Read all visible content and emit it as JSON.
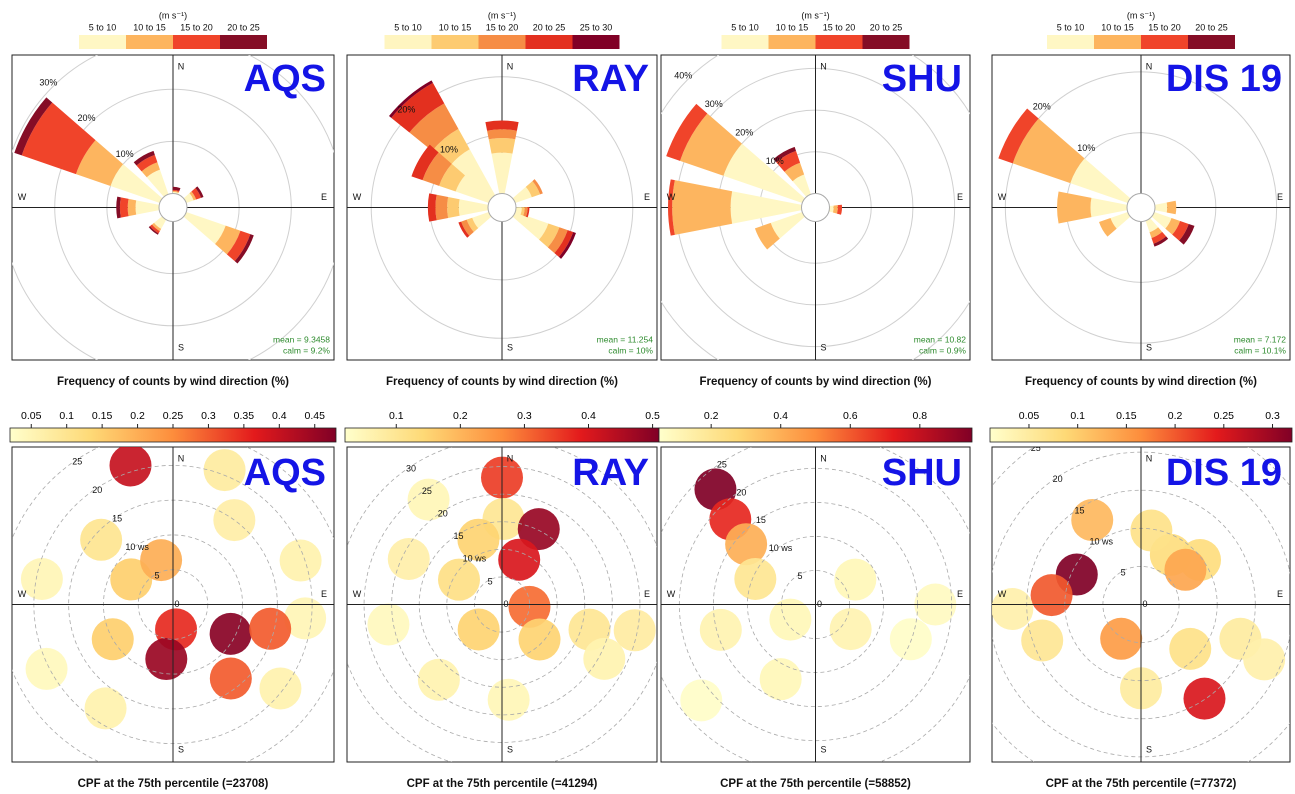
{
  "chart_data": [
    {
      "type": "windrose",
      "site": "AQS",
      "title": "Frequency of counts by wind direction (%)",
      "legend_title": "(m s⁻¹)",
      "compass": [
        "N",
        "E",
        "S",
        "W"
      ],
      "annotations": [
        "mean = 9.3458",
        "calm = 9.2%"
      ],
      "rlim": [
        0,
        28
      ],
      "rticks": [
        {
          "value": 10,
          "label": "10%"
        },
        {
          "value": 20,
          "label": "20%"
        },
        {
          "value": 30,
          "label": "30%"
        }
      ],
      "directions": [
        300,
        330,
        10,
        60,
        120,
        220,
        270
      ],
      "series": [
        {
          "name": "5 to 10",
          "color": "#fff7c4",
          "values": [
            10,
            5,
            0.3,
            1.5,
            8,
            2,
            4.5
          ]
        },
        {
          "name": "10 to 15",
          "color": "#fdb55f",
          "values": [
            7,
            1.5,
            0.2,
            0.5,
            3,
            0.5,
            1.5
          ]
        },
        {
          "name": "15 to 20",
          "color": "#f0442a",
          "values": [
            11,
            1.5,
            0.2,
            1,
            2,
            0.5,
            1.5
          ]
        },
        {
          "name": "20 to 25",
          "color": "#850d26",
          "values": [
            1.5,
            0.8,
            0.6,
            0.5,
            0.7,
            0.3,
            0.7
          ]
        }
      ]
    },
    {
      "type": "windrose",
      "site": "RAY",
      "title": "Frequency of counts by wind direction (%)",
      "legend_title": "(m s⁻¹)",
      "compass": [
        "N",
        "E",
        "S",
        "W"
      ],
      "annotations": [
        "mean = 11.254",
        "calm = 10%"
      ],
      "rlim": [
        0,
        25
      ],
      "rticks": [
        {
          "value": 10,
          "label": "10%"
        },
        {
          "value": 20,
          "label": "20%"
        }
      ],
      "directions": [
        320,
        300,
        0,
        270,
        240,
        60,
        120,
        100
      ],
      "series": [
        {
          "name": "5 to 10",
          "color": "#fff5c0",
          "values": [
            9,
            6,
            7,
            5,
            3,
            3,
            6,
            1
          ]
        },
        {
          "name": "10 to 15",
          "color": "#fdcb71",
          "values": [
            4,
            3,
            2.5,
            2,
            1,
            1.5,
            2,
            0.5
          ]
        },
        {
          "name": "15 to 20",
          "color": "#f68d45",
          "values": [
            5,
            3,
            1.5,
            2,
            1,
            0.5,
            1.5,
            0.5
          ]
        },
        {
          "name": "20 to 25",
          "color": "#e3301f",
          "values": [
            4,
            2,
            1.5,
            1.3,
            0.5,
            0,
            1,
            0.3
          ]
        },
        {
          "name": "25 to 30",
          "color": "#800026",
          "values": [
            0.5,
            0,
            0,
            0,
            0,
            0,
            0.5,
            0
          ]
        }
      ]
    },
    {
      "type": "windrose",
      "site": "SHU",
      "title": "Frequency of counts by wind direction (%)",
      "legend_title": "(m s⁻¹)",
      "compass": [
        "N",
        "E",
        "S",
        "W"
      ],
      "annotations": [
        "mean = 10.82",
        "calm = 0.9%"
      ],
      "rlim": [
        0,
        35
      ],
      "rticks": [
        {
          "value": 10,
          "label": "10%"
        },
        {
          "value": 20,
          "label": "20%"
        },
        {
          "value": 30,
          "label": "30%"
        },
        {
          "value": 40,
          "label": "40%"
        }
      ],
      "directions": [
        300,
        270,
        330,
        240,
        95
      ],
      "series": [
        {
          "name": "5 to 10",
          "color": "#fff7c4",
          "values": [
            20,
            17,
            5,
            8,
            1
          ]
        },
        {
          "name": "10 to 15",
          "color": "#fdb55f",
          "values": [
            11,
            14,
            3,
            4,
            1
          ]
        },
        {
          "name": "15 to 20",
          "color": "#f0442a",
          "values": [
            3.5,
            1,
            3,
            0,
            1
          ]
        },
        {
          "name": "20 to 25",
          "color": "#850d26",
          "values": [
            0,
            0,
            1,
            0,
            0
          ]
        }
      ]
    },
    {
      "type": "windrose",
      "site": "DIS 19",
      "title": "Frequency of counts by wind direction (%)",
      "legend_title": "(m s⁻¹)",
      "compass": [
        "N",
        "E",
        "S",
        "W"
      ],
      "annotations": [
        "mean = 7.172",
        "calm = 10.1%"
      ],
      "rlim": [
        0,
        24
      ],
      "rticks": [
        {
          "value": 10,
          "label": "10%"
        },
        {
          "value": 20,
          "label": "20%"
        }
      ],
      "directions": [
        300,
        270,
        240,
        120,
        150,
        90
      ],
      "series": [
        {
          "name": "5 to 10",
          "color": "#fff7c4",
          "values": [
            10,
            6,
            3,
            3,
            2,
            2
          ]
        },
        {
          "name": "10 to 15",
          "color": "#fdb55f",
          "values": [
            10,
            5.5,
            2,
            1.5,
            1,
            1.5
          ]
        },
        {
          "name": "15 to 20",
          "color": "#f0442a",
          "values": [
            2.5,
            0,
            0,
            1.5,
            1,
            0
          ]
        },
        {
          "name": "20 to 25",
          "color": "#850d26",
          "values": [
            0,
            0,
            0,
            1,
            0.5,
            0
          ]
        }
      ]
    },
    {
      "type": "cpf",
      "site": "AQS",
      "title": "CPF at the 75th percentile (=23708)",
      "compass": [
        "N",
        "E",
        "S",
        "W"
      ],
      "colormap": [
        "#ffffcc",
        "#fed976",
        "#fd8d3c",
        "#e31a1c",
        "#800026"
      ],
      "clim": [
        0.02,
        0.48
      ],
      "cticks": [
        0.05,
        0.1,
        0.15,
        0.2,
        0.25,
        0.3,
        0.35,
        0.4,
        0.45
      ],
      "rlim": [
        0,
        23
      ],
      "rticks": [
        0,
        5,
        {
          "value": 10,
          "label": "10 ws"
        },
        15,
        20,
        25
      ],
      "wd": [
        343,
        21,
        36,
        71,
        96,
        281,
        312,
        301,
        345,
        173,
        117,
        104,
        187,
        142,
        240,
        213,
        243,
        128
      ],
      "ws": [
        20.9,
        20.7,
        15,
        19.4,
        19.1,
        19.2,
        13.9,
        7,
        6.6,
        3.6,
        9.3,
        14.4,
        7.9,
        13.5,
        10,
        17.8,
        20.4,
        19.6
      ],
      "values": [
        0.4,
        0.08,
        0.07,
        0.06,
        0.05,
        0.05,
        0.1,
        0.15,
        0.2,
        0.35,
        0.47,
        0.3,
        0.45,
        0.3,
        0.15,
        0.06,
        0.04,
        0.06
      ]
    },
    {
      "type": "cpf",
      "site": "RAY",
      "title": "CPF at the 75th percentile (=41294)",
      "compass": [
        "N",
        "E",
        "S",
        "W"
      ],
      "colormap": [
        "#ffffcc",
        "#fed976",
        "#fd8d3c",
        "#e31a1c",
        "#800026"
      ],
      "clim": [
        0.02,
        0.51
      ],
      "cticks": [
        0.1,
        0.2,
        0.3,
        0.4,
        0.5
      ],
      "rlim": [
        0,
        29
      ],
      "rticks": [
        0,
        5,
        {
          "value": 10,
          "label": "10 ws"
        },
        15,
        20,
        25,
        30
      ],
      "wd": [
        0,
        1,
        26,
        21,
        340,
        325,
        296,
        300,
        223,
        95,
        133,
        106,
        101,
        118,
        260,
        220,
        176
      ],
      "ws": [
        23,
        15.5,
        15.2,
        8.7,
        12.5,
        23.2,
        18.8,
        9,
        6.2,
        5,
        9.3,
        16.5,
        24.5,
        21,
        20.9,
        17.8,
        17.3
      ],
      "values": [
        0.35,
        0.1,
        0.48,
        0.4,
        0.15,
        0.05,
        0.07,
        0.12,
        0.15,
        0.3,
        0.15,
        0.1,
        0.08,
        0.06,
        0.04,
        0.06,
        0.05
      ]
    },
    {
      "type": "cpf",
      "site": "SHU",
      "title": "CPF at the 75th percentile (=58852)",
      "compass": [
        "N",
        "E",
        "S",
        "W"
      ],
      "colormap": [
        "#ffffcc",
        "#fed976",
        "#fd8d3c",
        "#e31a1c",
        "#800026"
      ],
      "clim": [
        0.05,
        0.95
      ],
      "cticks": [
        0.2,
        0.4,
        0.6,
        0.8
      ],
      "rlim": [
        0,
        23.5
      ],
      "rticks": [
        0,
        5,
        {
          "value": 10,
          "label": "10 ws"
        },
        15,
        20,
        25
      ],
      "wd": [
        319,
        315,
        311,
        293,
        255,
        239,
        205,
        125,
        58,
        90,
        110,
        230
      ],
      "ws": [
        22.4,
        17.7,
        13.5,
        9.6,
        14.4,
        4.3,
        12.1,
        6.3,
        6.9,
        17.6,
        14.9,
        21.9
      ],
      "values": [
        0.95,
        0.7,
        0.4,
        0.2,
        0.12,
        0.1,
        0.1,
        0.12,
        0.1,
        0.08,
        0.06,
        0.06
      ]
    },
    {
      "type": "cpf",
      "site": "DIS 19",
      "title": "CPF at the 75th percentile (=77372)",
      "compass": [
        "N",
        "E",
        "S",
        "W"
      ],
      "colormap": [
        "#ffffcc",
        "#fed976",
        "#fd8d3c",
        "#e31a1c",
        "#800026"
      ],
      "clim": [
        0.01,
        0.32
      ],
      "cticks": [
        0.05,
        0.1,
        0.15,
        0.2,
        0.25,
        0.3
      ],
      "rlim": [
        0,
        21
      ],
      "rticks": [
        0,
        5,
        {
          "value": 10,
          "label": "10 ws"
        },
        15,
        20,
        25
      ],
      "wd": [
        295,
        276,
        330,
        31,
        53,
        8,
        52,
        210,
        250,
        132,
        109,
        114,
        146,
        180,
        268
      ],
      "ws": [
        9.3,
        11.8,
        12.8,
        7.6,
        9.7,
        9.8,
        7.4,
        5.2,
        13.8,
        8.7,
        13.8,
        17.7,
        14.9,
        11,
        16.9
      ],
      "values": [
        0.32,
        0.2,
        0.12,
        0.08,
        0.08,
        0.07,
        0.14,
        0.15,
        0.06,
        0.07,
        0.05,
        0.04,
        0.25,
        0.05,
        0.04
      ]
    }
  ]
}
